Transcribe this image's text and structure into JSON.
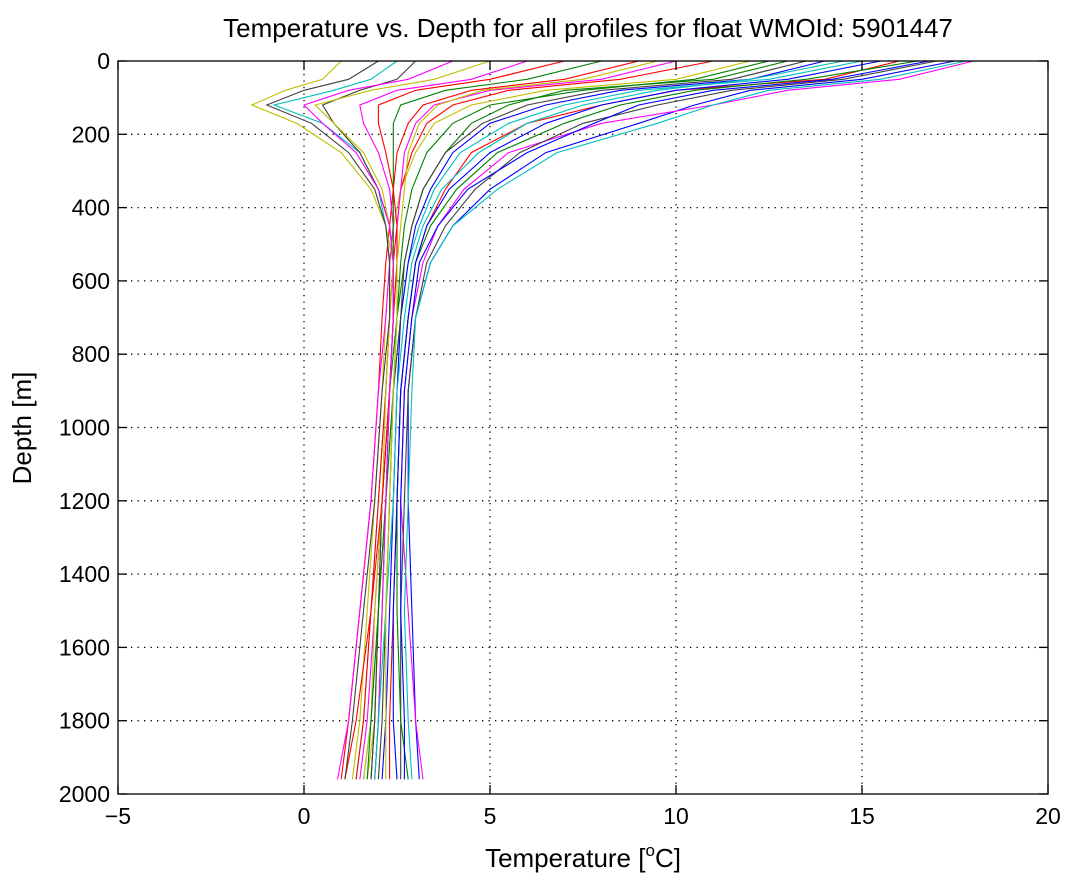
{
  "chart_data": {
    "type": "line",
    "title": "Temperature vs. Depth for all profiles for float WMOId: 5901447",
    "xlabel_main": "Temperature [",
    "xlabel_sup": "o",
    "xlabel_tail": "C]",
    "ylabel": "Depth [m]",
    "xlim": [
      -5,
      20
    ],
    "ylim": [
      0,
      2000
    ],
    "y_reversed": true,
    "grid": true,
    "xticks": [
      -5,
      0,
      5,
      10,
      15,
      20
    ],
    "xtick_labels": [
      "−5",
      "0",
      "5",
      "10",
      "15",
      "20"
    ],
    "yticks": [
      0,
      200,
      400,
      600,
      800,
      1000,
      1200,
      1400,
      1600,
      1800,
      2000
    ],
    "ytick_labels": [
      "0",
      "200",
      "400",
      "600",
      "800",
      "1000",
      "1200",
      "1400",
      "1600",
      "1800",
      "2000"
    ],
    "depth_levels": [
      0,
      50,
      80,
      120,
      170,
      250,
      350,
      450,
      550,
      700,
      900,
      1200,
      1500,
      1800,
      1960
    ],
    "series_colors": [
      "#ff0000",
      "#0000ff",
      "#008000",
      "#ff00ff",
      "#00bfbf",
      "#bfbf00",
      "#404040"
    ],
    "series": [
      {
        "values": [
          16.0,
          14.0,
          10.0,
          8.0,
          6.0,
          4.5,
          3.8,
          3.3,
          3.0,
          2.8,
          2.6,
          2.5,
          2.4,
          2.3,
          2.3
        ]
      },
      {
        "values": [
          17.5,
          15.0,
          12.0,
          10.5,
          9.0,
          6.5,
          5.0,
          4.0,
          3.4,
          3.0,
          2.8,
          2.8,
          2.9,
          3.0,
          3.1
        ]
      },
      {
        "values": [
          13.0,
          11.0,
          7.0,
          5.5,
          4.5,
          3.8,
          3.2,
          2.9,
          2.7,
          2.5,
          2.3,
          2.1,
          2.0,
          1.9,
          1.8
        ]
      },
      {
        "values": [
          18.0,
          16.0,
          13.0,
          11.0,
          8.0,
          5.5,
          4.3,
          3.6,
          3.2,
          2.9,
          2.7,
          2.6,
          2.8,
          3.0,
          3.2
        ]
      },
      {
        "values": [
          15.0,
          12.5,
          9.0,
          7.0,
          5.5,
          4.2,
          3.5,
          3.1,
          2.8,
          2.6,
          2.4,
          2.2,
          2.0,
          1.8,
          1.6
        ]
      },
      {
        "values": [
          12.0,
          10.0,
          6.5,
          4.5,
          3.5,
          3.0,
          2.6,
          2.4,
          2.3,
          2.2,
          2.1,
          1.9,
          1.7,
          1.5,
          1.3
        ]
      },
      {
        "values": [
          17.0,
          14.5,
          11.5,
          9.5,
          7.5,
          5.8,
          4.6,
          3.8,
          3.3,
          3.0,
          2.8,
          2.7,
          2.6,
          2.6,
          2.6
        ]
      },
      {
        "values": [
          9.0,
          7.0,
          4.5,
          3.2,
          2.8,
          2.5,
          2.4,
          2.3,
          2.2,
          2.1,
          2.0,
          1.8,
          1.5,
          1.2,
          1.0
        ]
      },
      {
        "values": [
          14.0,
          12.0,
          8.5,
          6.5,
          5.0,
          4.0,
          3.4,
          3.0,
          2.8,
          2.6,
          2.5,
          2.4,
          2.3,
          2.2,
          2.1
        ]
      },
      {
        "values": [
          16.5,
          13.5,
          10.5,
          8.5,
          7.0,
          5.2,
          4.1,
          3.4,
          3.0,
          2.8,
          2.6,
          2.5,
          2.5,
          2.6,
          2.8
        ]
      },
      {
        "values": [
          6.0,
          4.5,
          2.5,
          1.5,
          1.6,
          2.0,
          2.3,
          2.4,
          2.3,
          2.2,
          2.0,
          1.8,
          1.5,
          1.2,
          0.9
        ]
      },
      {
        "values": [
          2.5,
          1.8,
          0.8,
          -0.8,
          0.5,
          1.5,
          2.0,
          2.2,
          2.3,
          2.3,
          2.2,
          2.0,
          1.8,
          1.6,
          1.4
        ]
      },
      {
        "values": [
          1.0,
          0.5,
          -0.5,
          -1.4,
          -0.2,
          1.0,
          1.8,
          2.2,
          2.4,
          2.4,
          2.3,
          2.2,
          2.0,
          1.9,
          1.7
        ]
      },
      {
        "values": [
          3.0,
          2.5,
          1.5,
          0.5,
          0.8,
          1.5,
          2.0,
          2.3,
          2.4,
          2.4,
          2.3,
          2.1,
          2.0,
          1.9,
          1.8
        ]
      },
      {
        "values": [
          11.0,
          8.5,
          5.5,
          4.0,
          3.3,
          2.9,
          2.6,
          2.5,
          2.4,
          2.3,
          2.2,
          2.0,
          1.8,
          1.6,
          1.4
        ]
      },
      {
        "values": [
          15.5,
          13.0,
          10.0,
          8.0,
          6.5,
          5.0,
          3.9,
          3.3,
          3.0,
          2.8,
          2.6,
          2.5,
          2.4,
          2.4,
          2.5
        ]
      },
      {
        "values": [
          8.0,
          6.0,
          3.8,
          2.6,
          2.4,
          2.4,
          2.4,
          2.4,
          2.4,
          2.4,
          2.3,
          2.2,
          2.1,
          2.0,
          1.9
        ]
      },
      {
        "values": [
          10.0,
          8.0,
          5.0,
          3.5,
          3.0,
          2.7,
          2.6,
          2.5,
          2.5,
          2.4,
          2.3,
          2.1,
          1.9,
          1.7,
          1.5
        ]
      },
      {
        "values": [
          17.8,
          15.5,
          12.5,
          11.0,
          9.5,
          6.8,
          5.2,
          4.0,
          3.4,
          3.0,
          2.9,
          2.8,
          2.7,
          2.8,
          2.9
        ]
      },
      {
        "values": [
          5.0,
          3.5,
          1.8,
          0.3,
          0.8,
          1.6,
          2.1,
          2.3,
          2.4,
          2.3,
          2.2,
          2.1,
          1.9,
          1.8,
          1.6
        ]
      },
      {
        "values": [
          13.5,
          11.5,
          8.0,
          6.0,
          4.8,
          3.8,
          3.2,
          2.9,
          2.7,
          2.6,
          2.4,
          2.3,
          2.2,
          2.1,
          2.0
        ]
      },
      {
        "values": [
          7.0,
          5.0,
          3.0,
          2.0,
          2.0,
          2.2,
          2.4,
          2.5,
          2.5,
          2.4,
          2.3,
          2.1,
          1.8,
          1.4,
          1.1
        ]
      },
      {
        "values": [
          16.8,
          14.2,
          11.0,
          9.0,
          7.8,
          6.0,
          4.4,
          3.6,
          3.1,
          2.9,
          2.7,
          2.6,
          2.6,
          2.7,
          2.7
        ]
      },
      {
        "values": [
          12.5,
          10.5,
          7.5,
          5.0,
          4.0,
          3.3,
          2.9,
          2.7,
          2.6,
          2.5,
          2.4,
          2.2,
          2.0,
          1.8,
          1.7
        ]
      },
      {
        "values": [
          4.0,
          2.8,
          1.2,
          0.0,
          0.5,
          1.4,
          2.0,
          2.3,
          2.4,
          2.4,
          2.3,
          2.2,
          2.1,
          2.0,
          1.9
        ]
      },
      {
        "values": [
          14.5,
          12.0,
          9.5,
          7.5,
          6.0,
          4.7,
          3.7,
          3.2,
          2.9,
          2.7,
          2.5,
          2.4,
          2.2,
          2.0,
          1.9
        ]
      },
      {
        "values": [
          9.5,
          7.5,
          4.8,
          3.6,
          3.1,
          2.8,
          2.7,
          2.6,
          2.5,
          2.5,
          2.4,
          2.3,
          2.2,
          2.2,
          2.2
        ]
      },
      {
        "values": [
          2.0,
          1.2,
          0.0,
          -1.0,
          0.2,
          1.2,
          1.9,
          2.2,
          2.3,
          2.3,
          2.1,
          1.9,
          1.6,
          1.3,
          1.1
        ]
      }
    ]
  }
}
